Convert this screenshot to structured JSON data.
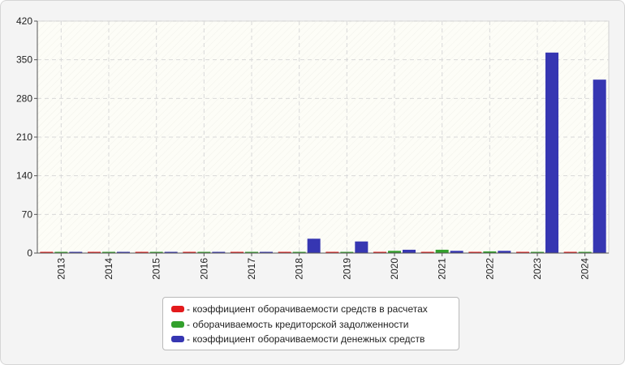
{
  "chart_data": {
    "type": "bar",
    "categories": [
      "2013",
      "2014",
      "2015",
      "2016",
      "2017",
      "2018",
      "2019",
      "2020",
      "2021",
      "2022",
      "2023",
      "2024"
    ],
    "series": [
      {
        "name": "- коэффициент оборачиваемости средств в расчетах",
        "color": "#e31a1c",
        "values": [
          1,
          1,
          1,
          1,
          1,
          1,
          1,
          1,
          1,
          1,
          1,
          1
        ]
      },
      {
        "name": "- оборачиваемость кредиторской задолженности",
        "color": "#33a02c",
        "values": [
          1,
          1,
          1,
          1,
          2,
          2,
          2,
          4,
          6,
          3,
          2,
          1
        ]
      },
      {
        "name": "- коэффициент оборачиваемости денежных средств",
        "color": "#3636b2",
        "values": [
          1,
          1,
          1,
          1,
          1,
          26,
          21,
          6,
          4,
          4,
          363,
          314
        ]
      }
    ],
    "ylim": [
      0,
      420
    ],
    "yticks": [
      0,
      70,
      140,
      210,
      280,
      350,
      420
    ],
    "ytick_labels": [
      "0",
      "70",
      "140",
      "210",
      "280",
      "350",
      "420"
    ],
    "grid": true,
    "legend_position": "bottom"
  }
}
